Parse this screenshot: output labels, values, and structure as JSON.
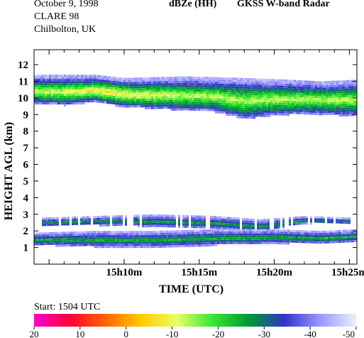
{
  "header": {
    "date": "October  9, 1998",
    "campaign": "CLARE 98",
    "site": "Chilbolton, UK",
    "product": "dBZe (HH)",
    "instrument": "GKSS  W-band Radar"
  },
  "start_label": "Start: 1504 UTC",
  "chart_data": {
    "type": "heatmap",
    "title": "dBZe (HH)",
    "xlabel": "TIME (UTC)",
    "ylabel": "HEIGHT AGL (km)",
    "xlim_minutes_after_1500": [
      4.0,
      25.5
    ],
    "ylim_km": [
      0,
      12.9
    ],
    "x_ticks": [
      {
        "minute": 10,
        "label": "15h10m"
      },
      {
        "minute": 15,
        "label": "15h15m"
      },
      {
        "minute": 20,
        "label": "15h20m"
      },
      {
        "minute": 25,
        "label": "15h25m"
      }
    ],
    "y_ticks": [
      1,
      2,
      3,
      4,
      5,
      6,
      7,
      8,
      9,
      10,
      11,
      12
    ],
    "colorbar": {
      "tick_labels": [
        "20",
        "10",
        "0",
        "-10",
        "-20",
        "-30",
        "-40",
        "-50"
      ],
      "range_dBZe": [
        20,
        -50
      ],
      "colors": [
        "#ff00cc",
        "#ff0033",
        "#ff6600",
        "#ffcc00",
        "#e8ff66",
        "#33e633",
        "#009933",
        "#3333cc",
        "#9999ff",
        "#eeeeff"
      ]
    },
    "layers": [
      {
        "name": "upper cloud",
        "cloud_top_km": [
          {
            "minute": 4,
            "km": 11.4
          },
          {
            "minute": 8,
            "km": 11.4
          },
          {
            "minute": 10,
            "km": 11.2
          },
          {
            "minute": 14,
            "km": 11.3
          },
          {
            "minute": 18,
            "km": 11.2
          },
          {
            "minute": 21,
            "km": 11.1
          },
          {
            "minute": 23,
            "km": 11.0
          },
          {
            "minute": 25.5,
            "km": 11.1
          }
        ],
        "cloud_base_km": [
          {
            "minute": 4,
            "km": 9.7
          },
          {
            "minute": 6,
            "km": 9.6
          },
          {
            "minute": 8,
            "km": 9.8
          },
          {
            "minute": 10,
            "km": 9.5
          },
          {
            "minute": 12,
            "km": 9.4
          },
          {
            "minute": 14,
            "km": 9.3
          },
          {
            "minute": 16,
            "km": 9.2
          },
          {
            "minute": 18,
            "km": 8.8
          },
          {
            "minute": 20,
            "km": 9.0
          },
          {
            "minute": 22,
            "km": 9.1
          },
          {
            "minute": 24,
            "km": 9.0
          },
          {
            "minute": 25.5,
            "km": 9.0
          }
        ],
        "peak_dBZe": -12,
        "peak_at_minute": 9,
        "peak_height_km": 10.1
      },
      {
        "name": "middle layer",
        "cloud_top_km": [
          {
            "minute": 4.5,
            "km": 2.8
          },
          {
            "minute": 8,
            "km": 2.9
          },
          {
            "minute": 12,
            "km": 3.0
          },
          {
            "minute": 16,
            "km": 2.9
          },
          {
            "minute": 19,
            "km": 2.7
          },
          {
            "minute": 22,
            "km": 2.9
          },
          {
            "minute": 25,
            "km": 2.8
          }
        ],
        "cloud_base_km": [
          {
            "minute": 4.5,
            "km": 2.3
          },
          {
            "minute": 8,
            "km": 2.4
          },
          {
            "minute": 12,
            "km": 2.3
          },
          {
            "minute": 16,
            "km": 2.2
          },
          {
            "minute": 19,
            "km": 2.0
          },
          {
            "minute": 22,
            "km": 2.5
          },
          {
            "minute": 25,
            "km": 2.5
          }
        ],
        "peak_dBZe": -26
      },
      {
        "name": "lower layer",
        "cloud_top_km": [
          {
            "minute": 4,
            "km": 1.9
          },
          {
            "minute": 8,
            "km": 2.0
          },
          {
            "minute": 12,
            "km": 2.0
          },
          {
            "minute": 16,
            "km": 2.1
          },
          {
            "minute": 20,
            "km": 2.1
          },
          {
            "minute": 23,
            "km": 2.0
          },
          {
            "minute": 25.5,
            "km": 2.1
          }
        ],
        "cloud_base_km": [
          {
            "minute": 4,
            "km": 1.2
          },
          {
            "minute": 8,
            "km": 1.1
          },
          {
            "minute": 12,
            "km": 1.1
          },
          {
            "minute": 16,
            "km": 1.2
          },
          {
            "minute": 20,
            "km": 1.3
          },
          {
            "minute": 23,
            "km": 1.3
          },
          {
            "minute": 25.5,
            "km": 1.4
          }
        ],
        "peak_dBZe": -24
      }
    ]
  }
}
